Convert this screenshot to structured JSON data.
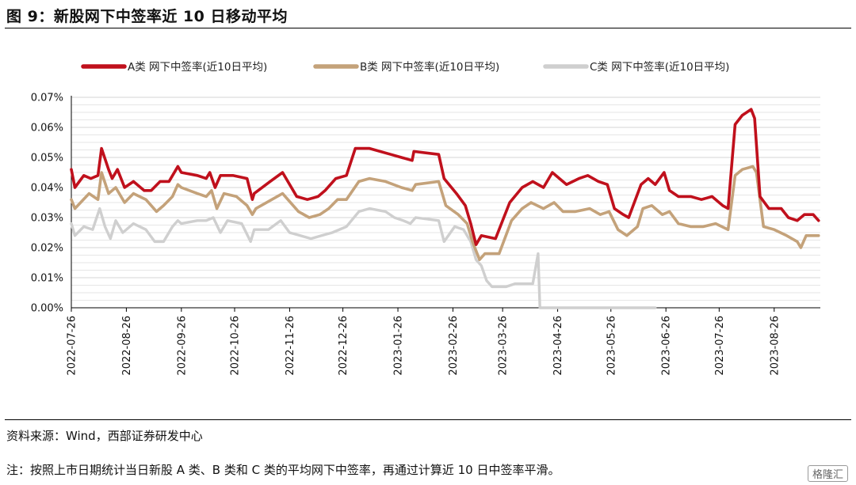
{
  "title": "图 9：新股网下中签率近 10 日移动平均",
  "source": "资料来源：Wind，西部证券研发中心",
  "note": "注：按照上市日期统计当日新股 A 类、B 类和 C 类的平均网下中签率，再通过计算近 10 日中签率平滑。",
  "watermark": "格隆汇",
  "chart_data": {
    "type": "line",
    "title": "",
    "xlabel": "",
    "ylabel": "",
    "ylim": [
      0,
      0.07
    ],
    "y_ticks": [
      "0.00%",
      "0.01%",
      "0.02%",
      "0.03%",
      "0.04%",
      "0.05%",
      "0.06%",
      "0.07%"
    ],
    "x_ticks": [
      "2022-07-26",
      "2022-08-26",
      "2022-09-26",
      "2022-10-26",
      "2022-11-26",
      "2022-12-26",
      "2023-01-26",
      "2023-02-26",
      "2023-03-26",
      "2023-04-26",
      "2023-05-26",
      "2023-06-26",
      "2023-07-26",
      "2023-08-26"
    ],
    "grid": true,
    "legend": "top",
    "colors": {
      "A": "#c0101c",
      "B": "#c4a27a",
      "C": "#cfcfcf"
    },
    "series": [
      {
        "name": "A类  网下中签率(近10日平均)",
        "key": "A",
        "points": [
          [
            "2022-07-26",
            0.046
          ],
          [
            "2022-07-28",
            0.04
          ],
          [
            "2022-08-02",
            0.044
          ],
          [
            "2022-08-06",
            0.043
          ],
          [
            "2022-08-10",
            0.044
          ],
          [
            "2022-08-12",
            0.053
          ],
          [
            "2022-08-16",
            0.046
          ],
          [
            "2022-08-18",
            0.043
          ],
          [
            "2022-08-21",
            0.046
          ],
          [
            "2022-08-25",
            0.04
          ],
          [
            "2022-08-30",
            0.042
          ],
          [
            "2022-09-05",
            0.039
          ],
          [
            "2022-09-09",
            0.039
          ],
          [
            "2022-09-14",
            0.042
          ],
          [
            "2022-09-19",
            0.042
          ],
          [
            "2022-09-24",
            0.047
          ],
          [
            "2022-09-26",
            0.045
          ],
          [
            "2022-10-05",
            0.044
          ],
          [
            "2022-10-10",
            0.043
          ],
          [
            "2022-10-12",
            0.045
          ],
          [
            "2022-10-15",
            0.04
          ],
          [
            "2022-10-18",
            0.044
          ],
          [
            "2022-10-25",
            0.044
          ],
          [
            "2022-11-02",
            0.043
          ],
          [
            "2022-11-05",
            0.036
          ],
          [
            "2022-11-06",
            0.038
          ],
          [
            "2022-11-15",
            0.042
          ],
          [
            "2022-11-22",
            0.045
          ],
          [
            "2022-11-30",
            0.037
          ],
          [
            "2022-12-06",
            0.036
          ],
          [
            "2022-12-12",
            0.037
          ],
          [
            "2022-12-16",
            0.039
          ],
          [
            "2022-12-22",
            0.043
          ],
          [
            "2022-12-28",
            0.044
          ],
          [
            "2023-01-02",
            0.053
          ],
          [
            "2023-01-10",
            0.053
          ],
          [
            "2023-01-22",
            0.051
          ],
          [
            "2023-01-28",
            0.05
          ],
          [
            "2023-02-03",
            0.049
          ],
          [
            "2023-02-04",
            0.052
          ],
          [
            "2023-02-18",
            0.051
          ],
          [
            "2023-02-21",
            0.043
          ],
          [
            "2023-02-28",
            0.038
          ],
          [
            "2023-03-05",
            0.034
          ],
          [
            "2023-03-08",
            0.028
          ],
          [
            "2023-03-11",
            0.021
          ],
          [
            "2023-03-14",
            0.024
          ],
          [
            "2023-03-22",
            0.023
          ],
          [
            "2023-03-30",
            0.035
          ],
          [
            "2023-04-06",
            0.04
          ],
          [
            "2023-04-12",
            0.042
          ],
          [
            "2023-04-18",
            0.04
          ],
          [
            "2023-04-23",
            0.045
          ],
          [
            "2023-04-27",
            0.043
          ],
          [
            "2023-05-01",
            0.041
          ],
          [
            "2023-05-08",
            0.043
          ],
          [
            "2023-05-13",
            0.044
          ],
          [
            "2023-05-19",
            0.042
          ],
          [
            "2023-05-24",
            0.041
          ],
          [
            "2023-05-28",
            0.033
          ],
          [
            "2023-06-02",
            0.031
          ],
          [
            "2023-06-05",
            0.03
          ],
          [
            "2023-06-12",
            0.041
          ],
          [
            "2023-06-16",
            0.043
          ],
          [
            "2023-06-20",
            0.041
          ],
          [
            "2023-06-25",
            0.045
          ],
          [
            "2023-06-28",
            0.039
          ],
          [
            "2023-07-03",
            0.037
          ],
          [
            "2023-07-10",
            0.037
          ],
          [
            "2023-07-16",
            0.036
          ],
          [
            "2023-07-22",
            0.037
          ],
          [
            "2023-07-28",
            0.034
          ],
          [
            "2023-07-31",
            0.033
          ],
          [
            "2023-08-04",
            0.061
          ],
          [
            "2023-08-08",
            0.064
          ],
          [
            "2023-08-13",
            0.066
          ],
          [
            "2023-08-15",
            0.063
          ],
          [
            "2023-08-18",
            0.037
          ],
          [
            "2023-08-23",
            0.033
          ],
          [
            "2023-08-30",
            0.033
          ],
          [
            "2023-09-03",
            0.03
          ],
          [
            "2023-09-08",
            0.029
          ],
          [
            "2023-09-12",
            0.031
          ],
          [
            "2023-09-17",
            0.031
          ],
          [
            "2023-09-20",
            0.029
          ]
        ]
      },
      {
        "name": "B类  网下中签率(近10日平均)",
        "key": "B",
        "points": [
          [
            "2022-07-26",
            0.036
          ],
          [
            "2022-07-28",
            0.033
          ],
          [
            "2022-08-05",
            0.038
          ],
          [
            "2022-08-10",
            0.036
          ],
          [
            "2022-08-12",
            0.045
          ],
          [
            "2022-08-16",
            0.038
          ],
          [
            "2022-08-20",
            0.04
          ],
          [
            "2022-08-25",
            0.035
          ],
          [
            "2022-08-30",
            0.038
          ],
          [
            "2022-09-06",
            0.036
          ],
          [
            "2022-09-12",
            0.032
          ],
          [
            "2022-09-16",
            0.034
          ],
          [
            "2022-09-21",
            0.037
          ],
          [
            "2022-09-24",
            0.041
          ],
          [
            "2022-09-26",
            0.04
          ],
          [
            "2022-10-05",
            0.038
          ],
          [
            "2022-10-10",
            0.037
          ],
          [
            "2022-10-13",
            0.039
          ],
          [
            "2022-10-16",
            0.033
          ],
          [
            "2022-10-20",
            0.038
          ],
          [
            "2022-10-27",
            0.037
          ],
          [
            "2022-11-02",
            0.034
          ],
          [
            "2022-11-05",
            0.031
          ],
          [
            "2022-11-07",
            0.033
          ],
          [
            "2022-11-16",
            0.036
          ],
          [
            "2022-11-22",
            0.038
          ],
          [
            "2022-12-01",
            0.032
          ],
          [
            "2022-12-07",
            0.03
          ],
          [
            "2022-12-13",
            0.031
          ],
          [
            "2022-12-18",
            0.033
          ],
          [
            "2022-12-23",
            0.036
          ],
          [
            "2022-12-28",
            0.036
          ],
          [
            "2023-01-04",
            0.042
          ],
          [
            "2023-01-10",
            0.043
          ],
          [
            "2023-01-19",
            0.042
          ],
          [
            "2023-01-28",
            0.04
          ],
          [
            "2023-02-03",
            0.039
          ],
          [
            "2023-02-05",
            0.041
          ],
          [
            "2023-02-18",
            0.042
          ],
          [
            "2023-02-22",
            0.034
          ],
          [
            "2023-03-01",
            0.031
          ],
          [
            "2023-03-06",
            0.028
          ],
          [
            "2023-03-09",
            0.022
          ],
          [
            "2023-03-13",
            0.016
          ],
          [
            "2023-03-16",
            0.018
          ],
          [
            "2023-03-24",
            0.018
          ],
          [
            "2023-03-31",
            0.029
          ],
          [
            "2023-04-06",
            0.033
          ],
          [
            "2023-04-11",
            0.035
          ],
          [
            "2023-04-18",
            0.033
          ],
          [
            "2023-04-24",
            0.035
          ],
          [
            "2023-04-29",
            0.032
          ],
          [
            "2023-05-06",
            0.032
          ],
          [
            "2023-05-14",
            0.033
          ],
          [
            "2023-05-20",
            0.031
          ],
          [
            "2023-05-25",
            0.032
          ],
          [
            "2023-05-30",
            0.026
          ],
          [
            "2023-06-04",
            0.024
          ],
          [
            "2023-06-10",
            0.027
          ],
          [
            "2023-06-13",
            0.033
          ],
          [
            "2023-06-18",
            0.034
          ],
          [
            "2023-06-24",
            0.031
          ],
          [
            "2023-06-28",
            0.032
          ],
          [
            "2023-07-03",
            0.028
          ],
          [
            "2023-07-10",
            0.027
          ],
          [
            "2023-07-17",
            0.027
          ],
          [
            "2023-07-24",
            0.028
          ],
          [
            "2023-07-31",
            0.026
          ],
          [
            "2023-08-04",
            0.044
          ],
          [
            "2023-08-08",
            0.046
          ],
          [
            "2023-08-14",
            0.047
          ],
          [
            "2023-08-16",
            0.045
          ],
          [
            "2023-08-20",
            0.027
          ],
          [
            "2023-08-26",
            0.026
          ],
          [
            "2023-09-02",
            0.024
          ],
          [
            "2023-09-08",
            0.022
          ],
          [
            "2023-09-10",
            0.02
          ],
          [
            "2023-09-13",
            0.024
          ],
          [
            "2023-09-20",
            0.024
          ]
        ]
      },
      {
        "name": "C类  网下中签率(近10日平均)",
        "key": "C",
        "points": [
          [
            "2022-07-26",
            0.028
          ],
          [
            "2022-07-28",
            0.024
          ],
          [
            "2022-08-02",
            0.027
          ],
          [
            "2022-08-07",
            0.026
          ],
          [
            "2022-08-11",
            0.033
          ],
          [
            "2022-08-14",
            0.027
          ],
          [
            "2022-08-17",
            0.023
          ],
          [
            "2022-08-20",
            0.029
          ],
          [
            "2022-08-24",
            0.025
          ],
          [
            "2022-08-30",
            0.028
          ],
          [
            "2022-09-06",
            0.026
          ],
          [
            "2022-09-11",
            0.022
          ],
          [
            "2022-09-16",
            0.022
          ],
          [
            "2022-09-21",
            0.027
          ],
          [
            "2022-09-24",
            0.029
          ],
          [
            "2022-09-26",
            0.028
          ],
          [
            "2022-10-05",
            0.029
          ],
          [
            "2022-10-10",
            0.029
          ],
          [
            "2022-10-14",
            0.03
          ],
          [
            "2022-10-18",
            0.025
          ],
          [
            "2022-10-22",
            0.029
          ],
          [
            "2022-10-30",
            0.028
          ],
          [
            "2022-11-04",
            0.022
          ],
          [
            "2022-11-06",
            0.026
          ],
          [
            "2022-11-14",
            0.026
          ],
          [
            "2022-11-21",
            0.029
          ],
          [
            "2022-11-26",
            0.025
          ],
          [
            "2022-12-02",
            0.024
          ],
          [
            "2022-12-08",
            0.023
          ],
          [
            "2022-12-14",
            0.024
          ],
          [
            "2022-12-20",
            0.025
          ],
          [
            "2022-12-28",
            0.027
          ],
          [
            "2023-01-04",
            0.032
          ],
          [
            "2023-01-10",
            0.033
          ],
          [
            "2023-01-19",
            0.032
          ],
          [
            "2023-01-24",
            0.03
          ],
          [
            "2023-01-29",
            0.029
          ],
          [
            "2023-02-02",
            0.028
          ],
          [
            "2023-02-05",
            0.03
          ],
          [
            "2023-02-18",
            0.029
          ],
          [
            "2023-02-21",
            0.022
          ],
          [
            "2023-02-27",
            0.027
          ],
          [
            "2023-03-04",
            0.026
          ],
          [
            "2023-03-08",
            0.022
          ],
          [
            "2023-03-11",
            0.016
          ],
          [
            "2023-03-14",
            0.014
          ],
          [
            "2023-03-17",
            0.009
          ],
          [
            "2023-03-20",
            0.007
          ],
          [
            "2023-03-28",
            0.007
          ],
          [
            "2023-04-02",
            0.008
          ],
          [
            "2023-04-12",
            0.008
          ],
          [
            "2023-04-15",
            0.018
          ],
          [
            "2023-04-16",
            0.0
          ],
          [
            "2023-06-20",
            0.0
          ]
        ]
      }
    ]
  }
}
